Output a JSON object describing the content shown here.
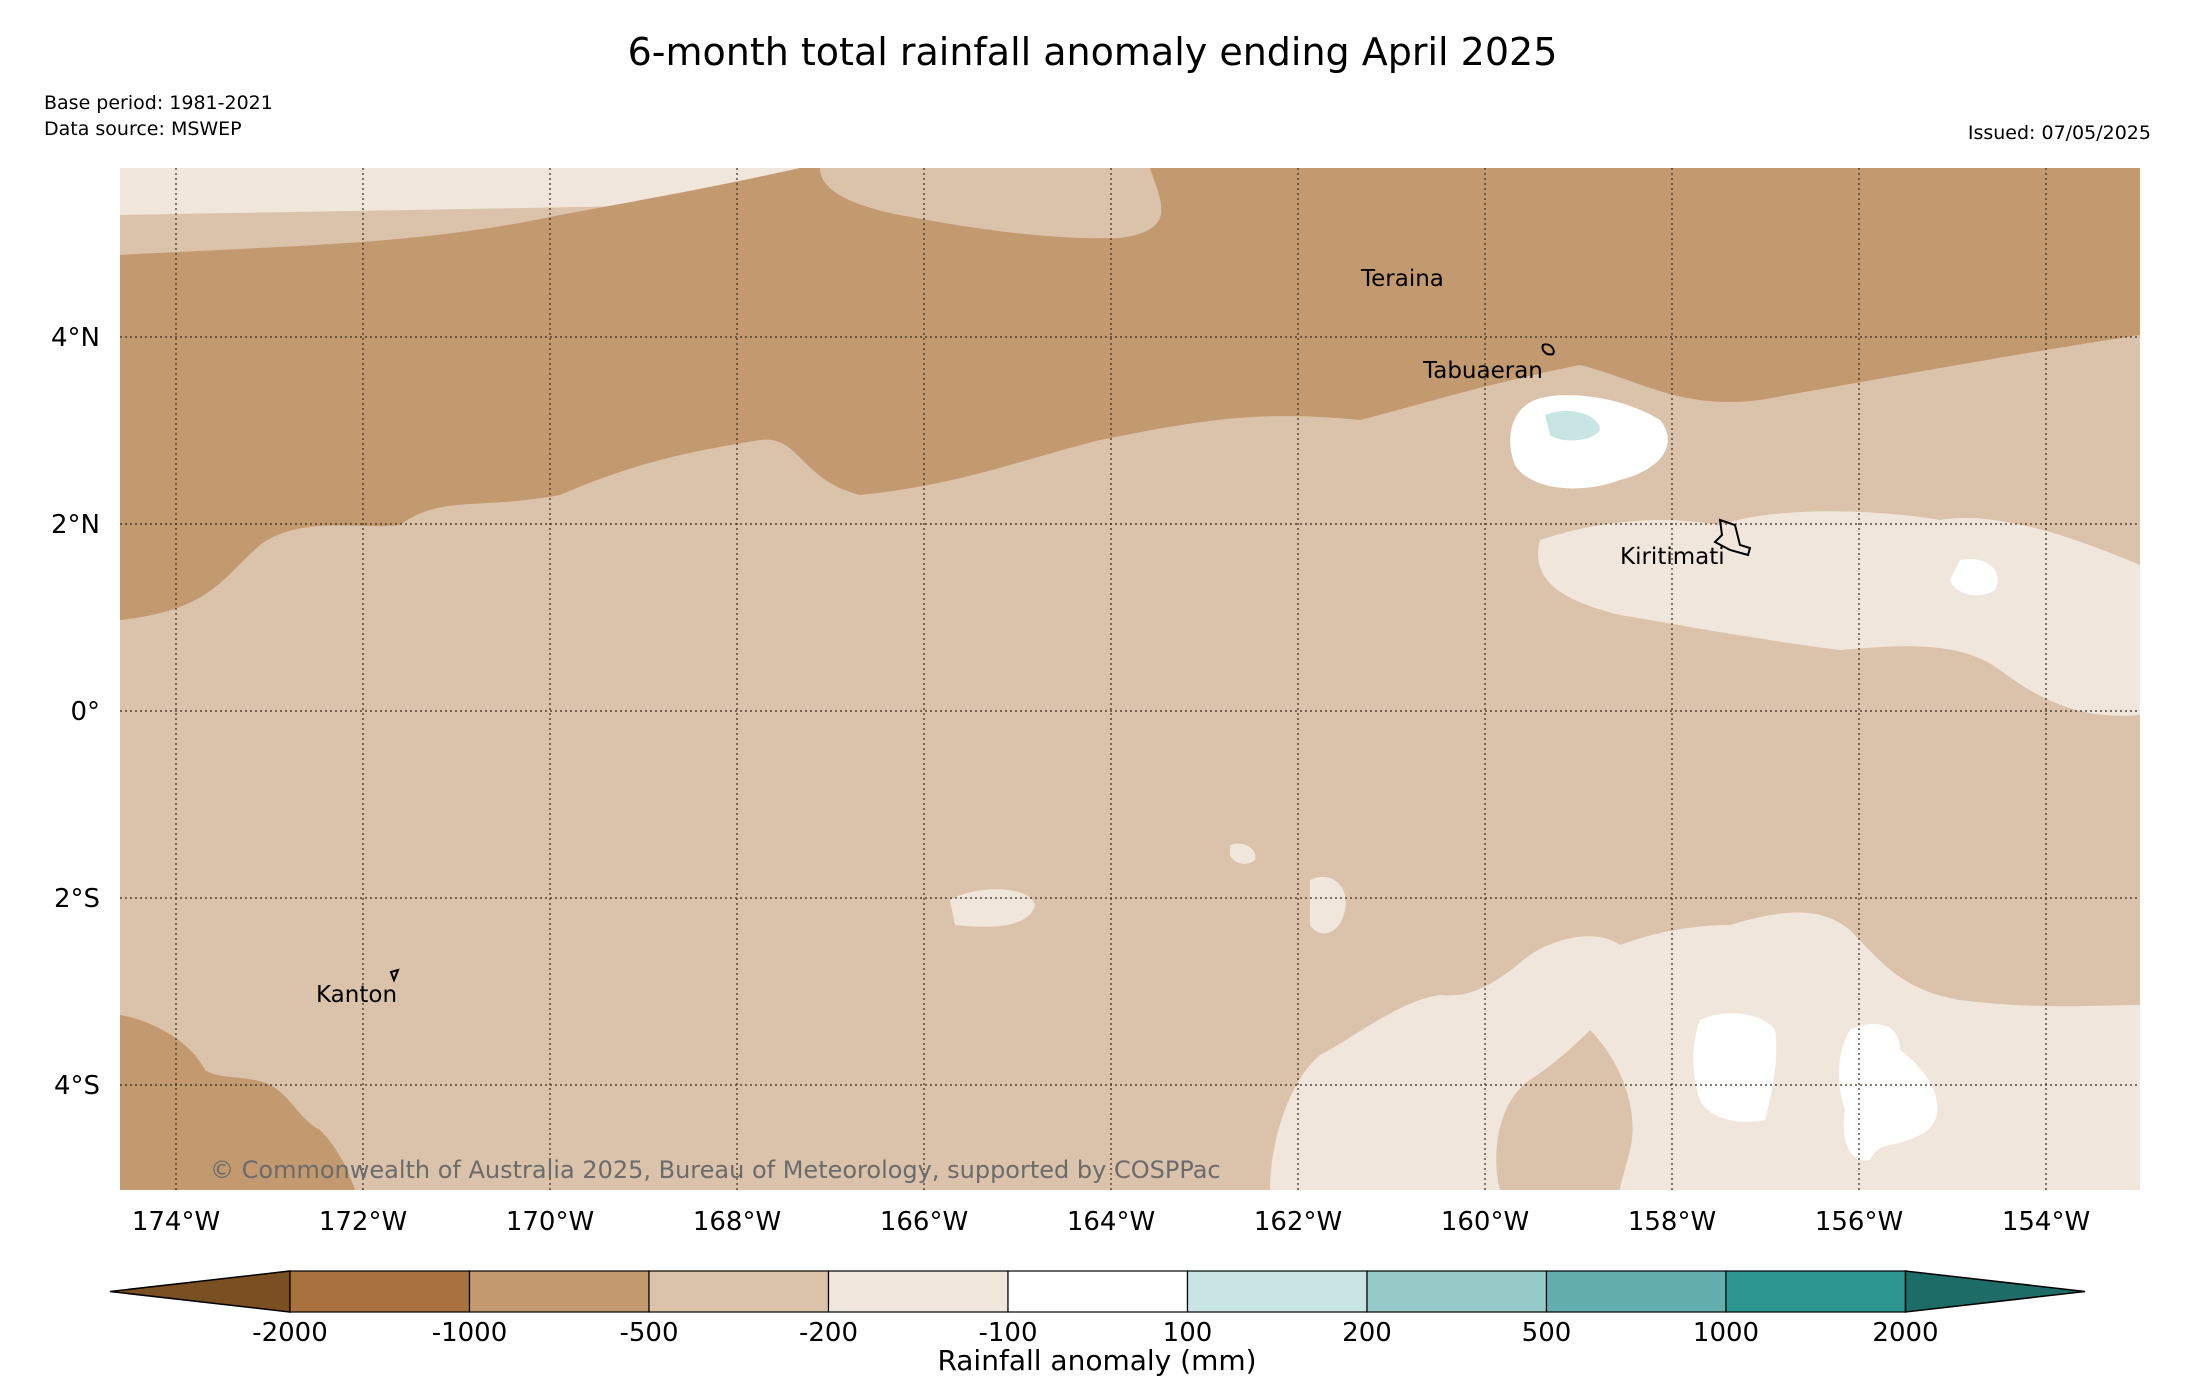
{
  "title": "6-month total rainfall anomaly ending April 2025",
  "base_period": "Base period: 1981-2021",
  "data_source": "Data source: MSWEP",
  "issued": "Issued: 07/05/2025",
  "copyright": "© Commonwealth of Australia 2025, Bureau of Meteorology, supported by COSPPac",
  "lon_ticks": [
    "174°W",
    "172°W",
    "170°W",
    "168°W",
    "166°W",
    "164°W",
    "162°W",
    "160°W",
    "158°W",
    "156°W",
    "154°W"
  ],
  "lat_ticks": [
    "4°N",
    "2°N",
    "0°",
    "2°S",
    "4°S"
  ],
  "places": [
    "Teraina",
    "Tabuaeran",
    "Kiritimati",
    "Kanton"
  ],
  "legend": {
    "title": "Rainfall anomaly (mm)",
    "labels": [
      "-2000",
      "-1000",
      "-500",
      "-200",
      "-100",
      "100",
      "200",
      "500",
      "1000",
      "2000"
    ],
    "colors": [
      "#7a4f22",
      "#a9713d",
      "#c39a70",
      "#dbc2aa",
      "#f0e6dc",
      "#ffffff",
      "#c9e5e3",
      "#96cac8",
      "#62afad",
      "#2e9690",
      "#1d6c68"
    ]
  }
}
